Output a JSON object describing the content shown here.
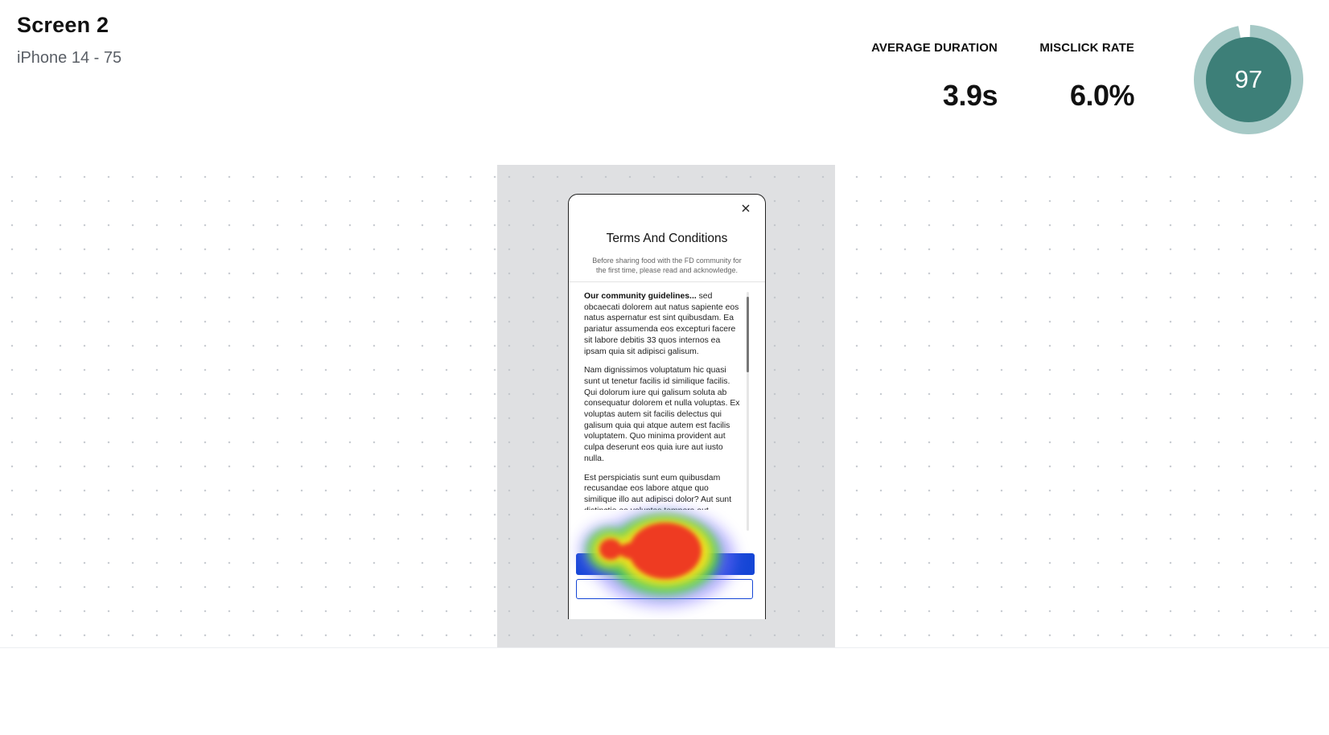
{
  "header": {
    "screen_title": "Screen 2",
    "subtitle": "iPhone 14 - 75"
  },
  "metrics": {
    "avg_duration": {
      "label": "AVERAGE DURATION",
      "value": "3.9s"
    },
    "misclick_rate": {
      "label": "MISCLICK RATE",
      "value": "6.0%"
    },
    "score": {
      "value": "97",
      "fraction": 0.97,
      "ring_color": "#a6c9c6",
      "fill_color": "#3d7f78"
    }
  },
  "modal": {
    "title": "Terms And Conditions",
    "description": "Before sharing food with the FD community for the first time, please read and acknowledge.",
    "close_icon": "close-icon",
    "terms": {
      "intro_bold": "Our community guidelines...",
      "intro_rest": " sed obcaecati dolorem aut natus sapiente eos natus aspernatur est sint quibusdam. Ea pariatur assumenda eos excepturi facere sit labore debitis 33 quos internos ea ipsam quia sit adipisci galisum.",
      "paragraph_2": "Nam dignissimos voluptatum hic quasi sunt ut tenetur facilis id similique facilis. Qui dolorum iure qui galisum soluta ab consequatur dolorem et nulla voluptas. Ex voluptas autem sit facilis delectus qui galisum quia qui atque autem est facilis voluptatem. Quo minima provident aut culpa deserunt eos quia iure aut iusto nulla.",
      "paragraph_3": "Est perspiciatis sunt eum quibusdam recusandae eos labore atque quo similique illo aut adipisci dolor? Aut sunt distinctio ea voluptas tempora aut"
    },
    "primary_button": "",
    "secondary_button": ""
  },
  "colors": {
    "primary_blue": "#1546d6",
    "canvas_bg": "#ffffff",
    "frame_bg": "#dfe0e2"
  }
}
